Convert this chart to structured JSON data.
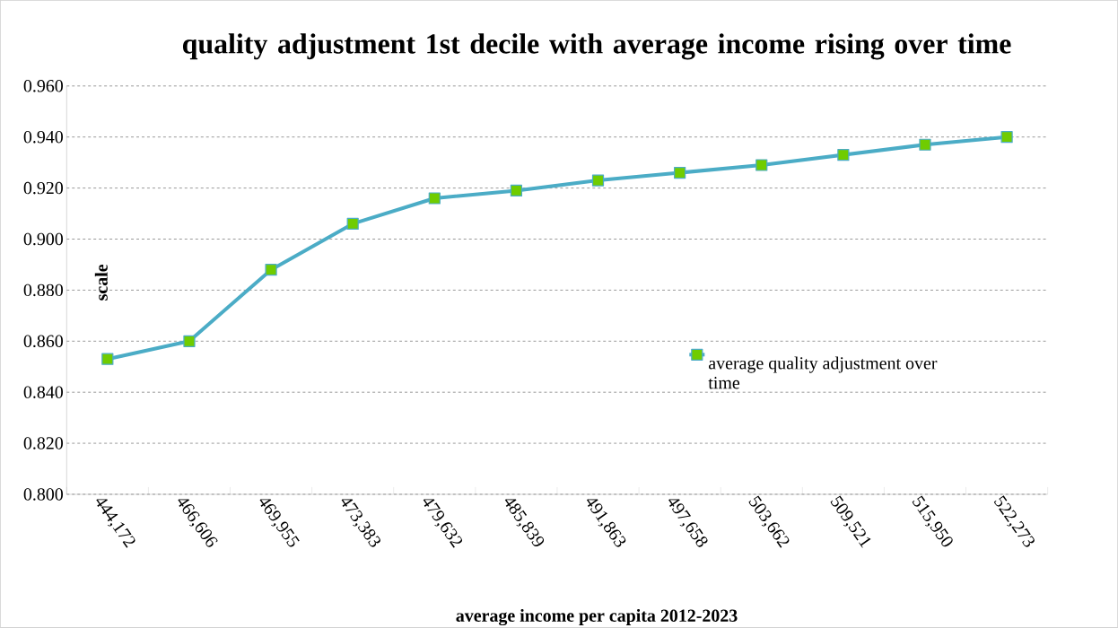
{
  "chart_data": {
    "type": "line",
    "title": "quality adjustment 1st decile with average income rising over time",
    "xlabel": "average income per capita 2012-2023",
    "ylabel": "scale",
    "categories": [
      "444,172",
      "466,606",
      "469,955",
      "473,383",
      "479,632",
      "485,839",
      "491,863",
      "497,658",
      "503,662",
      "509,521",
      "515,950",
      "522,273"
    ],
    "series": [
      {
        "name": "average quality adjustment over time",
        "color": "#4bacc6",
        "values": [
          0.853,
          0.86,
          0.888,
          0.906,
          0.916,
          0.919,
          0.923,
          0.926,
          0.929,
          0.933,
          0.937,
          0.94
        ]
      }
    ],
    "ylim": [
      0.8,
      0.96
    ],
    "yticks": [
      {
        "value": 0.8,
        "label": "0.800"
      },
      {
        "value": 0.82,
        "label": "0.820"
      },
      {
        "value": 0.84,
        "label": "0.840"
      },
      {
        "value": 0.86,
        "label": "0.860"
      },
      {
        "value": 0.88,
        "label": "0.880"
      },
      {
        "value": 0.9,
        "label": "0.900"
      },
      {
        "value": 0.92,
        "label": "0.920"
      },
      {
        "value": 0.94,
        "label": "0.940"
      },
      {
        "value": 0.96,
        "label": "0.960"
      }
    ],
    "grid": "y",
    "legend": "right",
    "marker": "square",
    "line_style": "solid"
  }
}
